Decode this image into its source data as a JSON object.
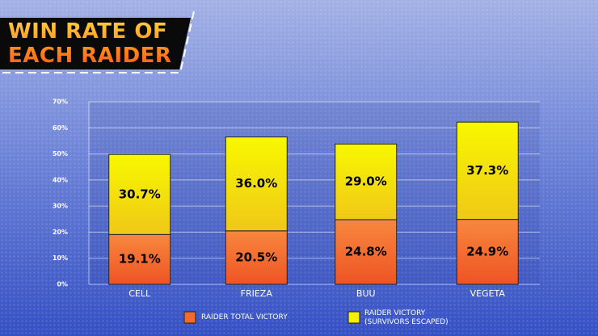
{
  "chart_data": {
    "type": "stacked-bar",
    "title": "WIN RATE OF EACH RAIDER",
    "categories": [
      "CELL",
      "FRIEZA",
      "BUU",
      "VEGETA"
    ],
    "series": [
      {
        "name": "RAIDER TOTAL VICTORY",
        "color": "#f26a2e",
        "values": [
          19.1,
          20.5,
          24.8,
          24.9
        ],
        "value_labels": [
          "19.1%",
          "20.5%",
          "24.8%",
          "24.9%"
        ]
      },
      {
        "name": "RAIDER VICTORY (SURVIVORS ESCAPED)",
        "color": "#f5f000",
        "values": [
          30.7,
          36.0,
          29.0,
          37.3
        ],
        "value_labels": [
          "30.7%",
          "36.0%",
          "29.0%",
          "37.3%"
        ]
      }
    ],
    "ylim": [
      0,
      70
    ],
    "yticks": [
      {
        "value": 0,
        "label": "0%"
      },
      {
        "value": 10,
        "label": "10%"
      },
      {
        "value": 20,
        "label": "20%"
      },
      {
        "value": 30,
        "label": "30%"
      },
      {
        "value": 40,
        "label": "40%"
      },
      {
        "value": 50,
        "label": "50%"
      },
      {
        "value": 60,
        "label": "60%"
      },
      {
        "value": 70,
        "label": "70%"
      }
    ],
    "grid": true,
    "legend": "bottom"
  }
}
